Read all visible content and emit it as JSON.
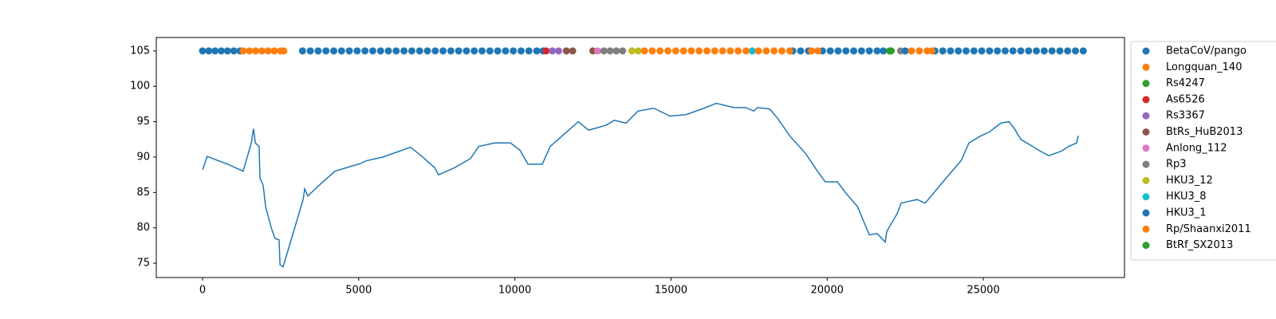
{
  "chart_data": {
    "type": "line+scatter",
    "xlim": [
      -1481,
      29520
    ],
    "ylim": [
      72.98,
      106.9
    ],
    "xticks": [
      0,
      5000,
      10000,
      15000,
      20000,
      25000
    ],
    "yticks": [
      75,
      80,
      85,
      90,
      95,
      100,
      105
    ],
    "line": {
      "color": "#1f77b4",
      "x": [
        0,
        150,
        500,
        800,
        1300,
        1430,
        1560,
        1630,
        1690,
        1810,
        1840,
        1940,
        2020,
        2200,
        2320,
        2450,
        2480,
        2580,
        3220,
        3270,
        3370,
        3730,
        4240,
        4750,
        5000,
        5260,
        5770,
        6280,
        6660,
        7050,
        7430,
        7560,
        8070,
        8580,
        8840,
        9350,
        9860,
        10160,
        10420,
        10880,
        11130,
        11520,
        12030,
        12360,
        12920,
        13180,
        13560,
        13940,
        14450,
        14960,
        15480,
        15990,
        16450,
        17010,
        17390,
        17650,
        17770,
        18160,
        18410,
        18800,
        19310,
        19690,
        19940,
        20330,
        20580,
        20970,
        21350,
        21600,
        21860,
        21910,
        22240,
        22370,
        22880,
        23140,
        23520,
        23900,
        24290,
        24540,
        24920,
        25180,
        25560,
        25820,
        26000,
        26200,
        26580,
        26840,
        27100,
        27480,
        27730,
        27990,
        28040
      ],
      "values": [
        88.2,
        90.1,
        89.5,
        89,
        88,
        90,
        92,
        94,
        92,
        91.5,
        87,
        86,
        83,
        80,
        78.5,
        78.3,
        74.8,
        74.5,
        84,
        85.5,
        84.5,
        86,
        88,
        88.7,
        89,
        89.5,
        90,
        90.8,
        91.4,
        90,
        88.5,
        87.5,
        88.5,
        89.8,
        91.5,
        92,
        92,
        91,
        89,
        89,
        91.5,
        93,
        95,
        93.8,
        94.5,
        95.2,
        94.8,
        96.5,
        96.9,
        95.8,
        96,
        96.8,
        97.6,
        97,
        97,
        96.5,
        97,
        96.8,
        95.5,
        93,
        90.5,
        88,
        86.5,
        86.5,
        85,
        83,
        79,
        79.2,
        78,
        79.5,
        82,
        83.5,
        84,
        83.5,
        85.5,
        87.5,
        89.5,
        92,
        93,
        93.5,
        94.8,
        95,
        94,
        92.5,
        91.5,
        90.8,
        90.2,
        90.8,
        91.5,
        92,
        93
      ]
    },
    "series": [
      {
        "name": "BetaCoV/pango",
        "color": "#1f77b4",
        "x": [
          0,
          200,
          400,
          600,
          800,
          1000,
          1200,
          3200,
          3450,
          3700,
          3950,
          4200,
          4450,
          4700,
          4950,
          5200,
          5450,
          5700,
          5950,
          6200,
          6450,
          6700,
          6950,
          7200,
          7450,
          7700,
          7950,
          8200,
          8450,
          8700,
          8950,
          9200,
          9450,
          9700,
          9950,
          10200,
          10450,
          10700,
          10900
        ],
        "values": [
          105,
          105,
          105,
          105,
          105,
          105,
          105,
          105,
          105,
          105,
          105,
          105,
          105,
          105,
          105,
          105,
          105,
          105,
          105,
          105,
          105,
          105,
          105,
          105,
          105,
          105,
          105,
          105,
          105,
          105,
          105,
          105,
          105,
          105,
          105,
          105,
          105,
          105,
          105
        ]
      },
      {
        "name": "Longquan_140",
        "color": "#ff7f0e",
        "x": [
          1300,
          1500,
          1700,
          1900,
          2100,
          2300,
          2500,
          2600
        ],
        "values": [
          105,
          105,
          105,
          105,
          105,
          105,
          105,
          105
        ]
      },
      {
        "name": "Rs4247",
        "color": "#2ca02c",
        "x": [
          22050
        ],
        "values": [
          105
        ]
      },
      {
        "name": "As6526",
        "color": "#d62728",
        "x": [
          11000
        ],
        "values": [
          105
        ]
      },
      {
        "name": "Rs3367",
        "color": "#9467bd",
        "x": [
          11200,
          11400
        ],
        "values": [
          105,
          105
        ]
      },
      {
        "name": "BtRs_HuB2013",
        "color": "#8c564b",
        "x": [
          11650,
          11850,
          12500
        ],
        "values": [
          105,
          105,
          105
        ]
      },
      {
        "name": "Anlong_112",
        "color": "#e377c2",
        "x": [
          12650
        ],
        "values": [
          105
        ]
      },
      {
        "name": "Rp3",
        "color": "#7f7f7f",
        "x": [
          12850,
          13050,
          13250,
          13450,
          22350
        ],
        "values": [
          105,
          105,
          105,
          105,
          105
        ]
      },
      {
        "name": "HKU3_12",
        "color": "#bcbd22",
        "x": [
          13750,
          13950
        ],
        "values": [
          105,
          105
        ]
      },
      {
        "name": "HKU3_8",
        "color": "#17becf",
        "x": [
          17600
        ],
        "values": [
          105
        ]
      },
      {
        "name": "HKU3_1",
        "color": "#1f77b4",
        "x": [
          18900,
          19150,
          19400,
          19850,
          20100,
          20350,
          20600,
          20850,
          21100,
          21350,
          21600,
          21800,
          22500,
          23450,
          23700,
          23950,
          24200,
          24450,
          24700,
          24950,
          25200,
          25450,
          25700,
          25950,
          26200,
          26450,
          26700,
          26950,
          27200,
          27450,
          27700,
          27950,
          28200
        ],
        "values": [
          105,
          105,
          105,
          105,
          105,
          105,
          105,
          105,
          105,
          105,
          105,
          105,
          105,
          105,
          105,
          105,
          105,
          105,
          105,
          105,
          105,
          105,
          105,
          105,
          105,
          105,
          105,
          105,
          105,
          105,
          105,
          105,
          105
        ]
      },
      {
        "name": "Rp/Shaanxi2011",
        "color": "#ff7f0e",
        "x": [
          14150,
          14400,
          14650,
          14900,
          15150,
          15400,
          15650,
          15900,
          16150,
          16400,
          16650,
          16900,
          17150,
          17400,
          17800,
          18050,
          18300,
          18550,
          18800,
          19500,
          19700,
          22700,
          22950,
          23200,
          23350
        ],
        "values": [
          105,
          105,
          105,
          105,
          105,
          105,
          105,
          105,
          105,
          105,
          105,
          105,
          105,
          105,
          105,
          105,
          105,
          105,
          105,
          105,
          105,
          105,
          105,
          105,
          105
        ]
      },
      {
        "name": "BtRf_SX2013",
        "color": "#2ca02c",
        "x": [
          22000
        ],
        "values": [
          105
        ]
      }
    ]
  }
}
